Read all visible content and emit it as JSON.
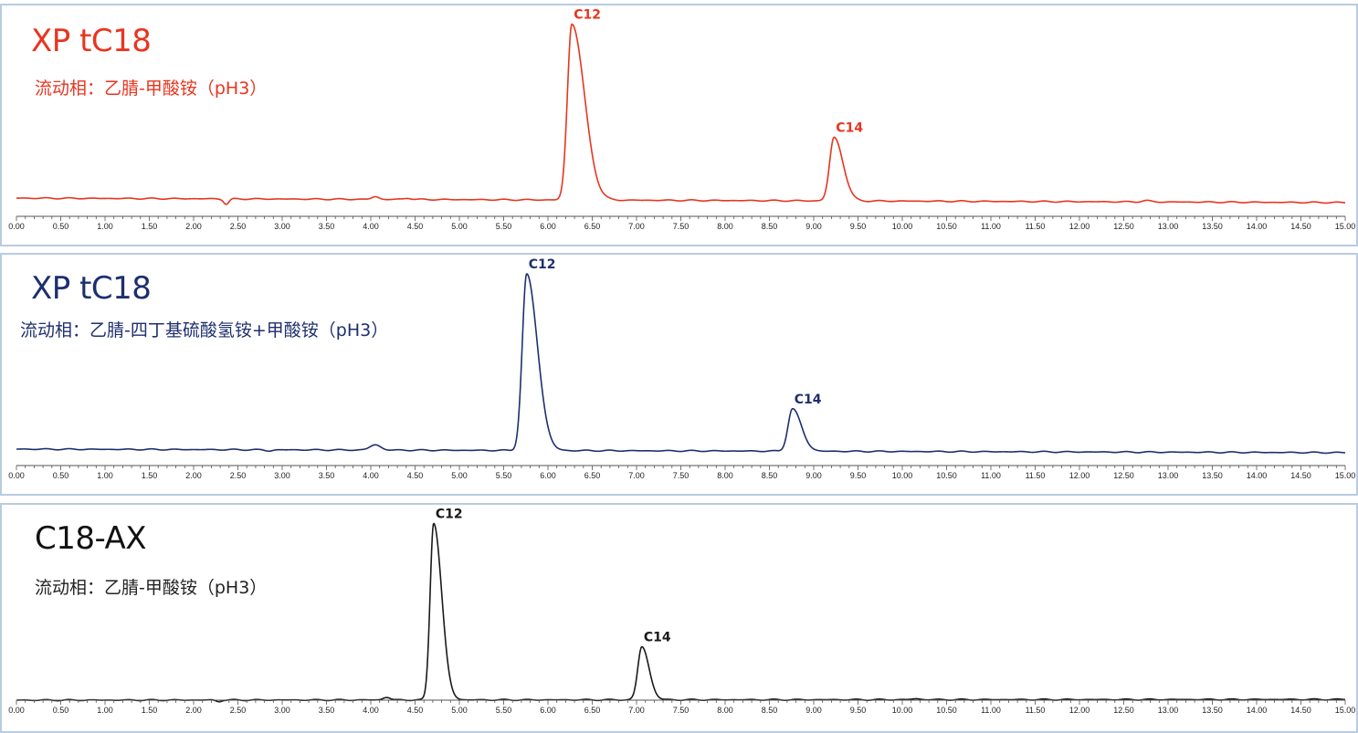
{
  "chart_data": [
    {
      "type": "line",
      "title": "XP tC18",
      "subtitle": "流动相：乙腈-甲酸铵（pH3）",
      "color": "#e8351f",
      "xlim": [
        0,
        15
      ],
      "ylim": [
        0,
        100
      ],
      "tick_labels": [
        "0.00",
        "0.50",
        "1.00",
        "1.50",
        "2.00",
        "2.50",
        "3.00",
        "3.50",
        "4.00",
        "4.50",
        "5.00",
        "5.50",
        "6.00",
        "6.50",
        "7.00",
        "7.50",
        "8.00",
        "8.50",
        "9.00",
        "9.50",
        "10.00",
        "10.50",
        "11.00",
        "11.50",
        "12.00",
        "12.50",
        "13.00",
        "13.50",
        "14.00",
        "14.50",
        "15.00"
      ],
      "baseline": {
        "start": 1.0,
        "end": -1.5
      },
      "peaks": [
        {
          "label": "C12",
          "x": 6.27,
          "height": 100,
          "sigma_left": 0.05,
          "sigma_right": 0.14
        },
        {
          "label": "C14",
          "x": 9.23,
          "height": 36,
          "sigma_left": 0.05,
          "sigma_right": 0.1
        }
      ],
      "minor_features": [
        {
          "x": 2.37,
          "height": -3,
          "sigma": 0.03
        },
        {
          "x": 4.05,
          "height": 1.5,
          "sigma": 0.04
        },
        {
          "x": 4.42,
          "height": 0.8,
          "sigma": 0.04
        },
        {
          "x": 12.75,
          "height": 0.7,
          "sigma": 0.05
        }
      ]
    },
    {
      "type": "line",
      "title": "XP tC18",
      "subtitle": "流动相：乙腈-四丁基硫酸氢铵+甲酸铵（pH3）",
      "color": "#1e2f6e",
      "xlim": [
        0,
        15
      ],
      "ylim": [
        0,
        100
      ],
      "tick_labels": [
        "0.00",
        "0.50",
        "1.00",
        "1.50",
        "2.00",
        "2.50",
        "3.00",
        "3.50",
        "4.00",
        "4.50",
        "5.00",
        "5.50",
        "6.00",
        "6.50",
        "7.00",
        "7.50",
        "8.00",
        "8.50",
        "9.00",
        "9.50",
        "10.00",
        "10.50",
        "11.00",
        "11.50",
        "12.00",
        "12.50",
        "13.00",
        "13.50",
        "14.00",
        "14.50",
        "15.00"
      ],
      "baseline": {
        "start": 0.0,
        "end": -2.0
      },
      "peaks": [
        {
          "label": "C12",
          "x": 5.76,
          "height": 100,
          "sigma_left": 0.05,
          "sigma_right": 0.12
        },
        {
          "label": "C14",
          "x": 8.76,
          "height": 24,
          "sigma_left": 0.05,
          "sigma_right": 0.1
        }
      ],
      "minor_features": [
        {
          "x": 4.05,
          "height": 3,
          "sigma": 0.06
        },
        {
          "x": 2.85,
          "height": -0.6,
          "sigma": 0.04
        }
      ]
    },
    {
      "type": "line",
      "title": "C18-AX",
      "subtitle": "流动相：乙腈-甲酸铵（pH3）",
      "color": "#1a1a1a",
      "xlim": [
        0,
        15
      ],
      "ylim": [
        0,
        100
      ],
      "tick_labels": [
        "0.00",
        "0.50",
        "1.00",
        "1.50",
        "2.00",
        "2.50",
        "3.00",
        "3.50",
        "4.00",
        "4.50",
        "5.00",
        "5.50",
        "6.00",
        "6.50",
        "7.00",
        "7.50",
        "8.00",
        "8.50",
        "9.00",
        "9.50",
        "10.00",
        "10.50",
        "11.00",
        "11.50",
        "12.00",
        "12.50",
        "13.00",
        "13.50",
        "14.00",
        "14.50",
        "15.00"
      ],
      "baseline": {
        "start": 0.0,
        "end": 0.4
      },
      "peaks": [
        {
          "label": "C12",
          "x": 4.71,
          "height": 100,
          "sigma_left": 0.04,
          "sigma_right": 0.09
        },
        {
          "label": "C14",
          "x": 7.06,
          "height": 30,
          "sigma_left": 0.045,
          "sigma_right": 0.08
        }
      ],
      "minor_features": [
        {
          "x": 4.18,
          "height": 1.5,
          "sigma": 0.04
        },
        {
          "x": 2.28,
          "height": -0.8,
          "sigma": 0.03
        },
        {
          "x": 10.15,
          "height": 0.5,
          "sigma": 0.05
        }
      ]
    }
  ]
}
